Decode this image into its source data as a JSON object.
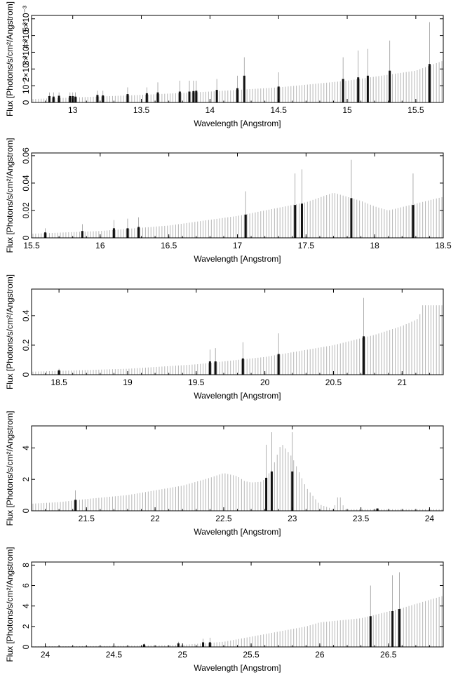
{
  "chart_data": [
    {
      "type": "bar",
      "xlabel": "Wavelength [Angstrom]",
      "ylabel": "Flux [Photons/s/cm²/Angstrom]",
      "xlim": [
        12.7,
        15.7
      ],
      "ylim": [
        0,
        0.0052
      ],
      "xticks": [
        13,
        13.5,
        14,
        14.5,
        15,
        15.5
      ],
      "yticks": [
        0,
        0.001,
        0.002,
        0.003,
        0.004,
        0.005
      ],
      "ytick_labels": [
        "0",
        "10⁻³",
        "2×10⁻³",
        "3×10⁻³",
        "4×10⁻³",
        "5×10⁻³"
      ],
      "continuum": [
        [
          12.7,
          0.0002
        ],
        [
          13.5,
          0.00045
        ],
        [
          14.0,
          0.00065
        ],
        [
          14.5,
          0.0009
        ],
        [
          15.0,
          0.0013
        ],
        [
          15.5,
          0.0019
        ],
        [
          15.7,
          0.0025
        ]
      ],
      "lines": [
        {
          "x": 12.83,
          "y": 0.00038,
          "tip": 0.0006
        },
        {
          "x": 12.86,
          "y": 0.00035,
          "tip": 0.0006
        },
        {
          "x": 12.9,
          "y": 0.0004,
          "tip": 0.0006
        },
        {
          "x": 12.98,
          "y": 0.00038,
          "tip": 0.0006
        },
        {
          "x": 13.0,
          "y": 0.00038,
          "tip": 0.0006
        },
        {
          "x": 13.02,
          "y": 0.00035,
          "tip": 0.0006
        },
        {
          "x": 13.18,
          "y": 0.00045,
          "tip": 0.0007
        },
        {
          "x": 13.22,
          "y": 0.00042,
          "tip": 0.0007
        },
        {
          "x": 13.4,
          "y": 0.0005,
          "tip": 0.0009
        },
        {
          "x": 13.54,
          "y": 0.00055,
          "tip": 0.0009
        },
        {
          "x": 13.62,
          "y": 0.0006,
          "tip": 0.0012
        },
        {
          "x": 13.78,
          "y": 0.00065,
          "tip": 0.0013
        },
        {
          "x": 13.85,
          "y": 0.00065,
          "tip": 0.0013
        },
        {
          "x": 13.88,
          "y": 0.00068,
          "tip": 0.0013
        },
        {
          "x": 13.9,
          "y": 0.0007,
          "tip": 0.0013
        },
        {
          "x": 14.05,
          "y": 0.00075,
          "tip": 0.0014
        },
        {
          "x": 14.2,
          "y": 0.00085,
          "tip": 0.0016
        },
        {
          "x": 14.25,
          "y": 0.0016,
          "tip": 0.0027
        },
        {
          "x": 14.5,
          "y": 0.00095,
          "tip": 0.0018
        },
        {
          "x": 14.97,
          "y": 0.0014,
          "tip": 0.0027
        },
        {
          "x": 15.08,
          "y": 0.0015,
          "tip": 0.0031
        },
        {
          "x": 15.15,
          "y": 0.0016,
          "tip": 0.0032
        },
        {
          "x": 15.31,
          "y": 0.0019,
          "tip": 0.0037
        },
        {
          "x": 15.6,
          "y": 0.0023,
          "tip": 0.0048
        }
      ]
    },
    {
      "type": "bar",
      "xlabel": "Wavelength [Angstrom]",
      "ylabel": "Flux [Photons/s/cm²/Angstrom]",
      "xlim": [
        15.5,
        18.5
      ],
      "ylim": [
        0,
        0.062
      ],
      "xticks": [
        15.5,
        16,
        16.5,
        17,
        17.5,
        18,
        18.5
      ],
      "yticks": [
        0,
        0.02,
        0.04,
        0.06
      ],
      "ytick_labels": [
        "0",
        "0.02",
        "0.04",
        "0.06"
      ],
      "continuum": [
        [
          15.5,
          0.003
        ],
        [
          16.0,
          0.005
        ],
        [
          16.5,
          0.009
        ],
        [
          17.0,
          0.016
        ],
        [
          17.5,
          0.026
        ],
        [
          17.7,
          0.033
        ],
        [
          17.9,
          0.027
        ],
        [
          18.0,
          0.023
        ],
        [
          18.1,
          0.02
        ],
        [
          18.5,
          0.03
        ]
      ],
      "lines": [
        {
          "x": 15.6,
          "y": 0.004,
          "tip": 0.007
        },
        {
          "x": 15.87,
          "y": 0.005,
          "tip": 0.01
        },
        {
          "x": 16.1,
          "y": 0.007,
          "tip": 0.013
        },
        {
          "x": 16.2,
          "y": 0.007,
          "tip": 0.014
        },
        {
          "x": 16.28,
          "y": 0.008,
          "tip": 0.015
        },
        {
          "x": 17.06,
          "y": 0.017,
          "tip": 0.034
        },
        {
          "x": 17.42,
          "y": 0.024,
          "tip": 0.047
        },
        {
          "x": 17.47,
          "y": 0.025,
          "tip": 0.05
        },
        {
          "x": 17.83,
          "y": 0.029,
          "tip": 0.057
        },
        {
          "x": 18.28,
          "y": 0.024,
          "tip": 0.047
        }
      ]
    },
    {
      "type": "bar",
      "xlabel": "Wavelength [Angstrom]",
      "ylabel": "Flux [Photons/s/cm²/Angstrom]",
      "xlim": [
        18.3,
        21.3
      ],
      "ylim": [
        0,
        0.58
      ],
      "xticks": [
        18.5,
        19,
        19.5,
        20,
        20.5,
        21
      ],
      "yticks": [
        0,
        0.2,
        0.4
      ],
      "ytick_labels": [
        "0",
        "0.2",
        "0.4"
      ],
      "continuum": [
        [
          18.3,
          0.02
        ],
        [
          19.0,
          0.04
        ],
        [
          19.5,
          0.07
        ],
        [
          20.0,
          0.12
        ],
        [
          20.5,
          0.2
        ],
        [
          20.8,
          0.27
        ],
        [
          21.0,
          0.33
        ],
        [
          21.12,
          0.38
        ],
        [
          21.15,
          0.47
        ],
        [
          21.3,
          0.47
        ]
      ],
      "lines": [
        {
          "x": 18.5,
          "y": 0.03,
          "tip": 0.04
        },
        {
          "x": 19.6,
          "y": 0.09,
          "tip": 0.17
        },
        {
          "x": 19.64,
          "y": 0.09,
          "tip": 0.18
        },
        {
          "x": 19.84,
          "y": 0.11,
          "tip": 0.22
        },
        {
          "x": 20.1,
          "y": 0.14,
          "tip": 0.28
        },
        {
          "x": 20.72,
          "y": 0.26,
          "tip": 0.52
        }
      ]
    },
    {
      "type": "bar",
      "xlabel": "Wavelength [Angstrom]",
      "ylabel": "Flux [Photons/s/cm²/Angstrom]",
      "xlim": [
        21.1,
        24.1
      ],
      "ylim": [
        0,
        5.4
      ],
      "xticks": [
        21.5,
        22,
        22.5,
        23,
        23.5,
        24
      ],
      "yticks": [
        0,
        2,
        4
      ],
      "ytick_labels": [
        "0",
        "2",
        "4"
      ],
      "continuum": [
        [
          21.1,
          0.45
        ],
        [
          21.3,
          0.55
        ],
        [
          21.5,
          0.75
        ],
        [
          21.8,
          1.0
        ],
        [
          22.0,
          1.3
        ],
        [
          22.2,
          1.6
        ],
        [
          22.4,
          2.1
        ],
        [
          22.5,
          2.4
        ],
        [
          22.6,
          2.2
        ],
        [
          22.65,
          1.9
        ],
        [
          22.7,
          1.8
        ],
        [
          22.78,
          1.85
        ],
        [
          22.85,
          2.6
        ],
        [
          22.92,
          4.3
        ],
        [
          23.0,
          3.4
        ],
        [
          23.1,
          1.5
        ],
        [
          23.2,
          0.4
        ],
        [
          23.3,
          0.1
        ],
        [
          23.34,
          1.1
        ],
        [
          23.38,
          0.1
        ],
        [
          23.45,
          0.1
        ],
        [
          24.1,
          0.1
        ]
      ],
      "lines": [
        {
          "x": 21.42,
          "y": 0.7,
          "tip": 1.3
        },
        {
          "x": 22.81,
          "y": 2.1,
          "tip": 4.2
        },
        {
          "x": 22.85,
          "y": 2.5,
          "tip": 5.0
        },
        {
          "x": 23.0,
          "y": 2.5,
          "tip": 5.0
        },
        {
          "x": 23.62,
          "y": 0.15,
          "tip": 0.15
        }
      ]
    },
    {
      "type": "bar",
      "xlabel": "Wavelength [Angstrom]",
      "ylabel": "Flux [Photons/s/cm²/Angstrom]",
      "xlim": [
        23.9,
        26.9
      ],
      "ylim": [
        0,
        8.3
      ],
      "xticks": [
        24,
        24.5,
        25,
        25.5,
        26,
        26.5
      ],
      "yticks": [
        0,
        2,
        4,
        6,
        8
      ],
      "ytick_labels": [
        "0",
        "2",
        "4",
        "6",
        "8"
      ],
      "continuum": [
        [
          23.9,
          0.05
        ],
        [
          24.5,
          0.1
        ],
        [
          25.0,
          0.2
        ],
        [
          25.3,
          0.5
        ],
        [
          25.5,
          1.0
        ],
        [
          25.7,
          1.5
        ],
        [
          25.9,
          2.0
        ],
        [
          26.0,
          2.4
        ],
        [
          26.3,
          2.8
        ],
        [
          26.6,
          3.8
        ],
        [
          26.9,
          5.0
        ]
      ],
      "lines": [
        {
          "x": 24.72,
          "y": 0.25,
          "tip": 0.35
        },
        {
          "x": 24.97,
          "y": 0.35,
          "tip": 0.5
        },
        {
          "x": 25.15,
          "y": 0.45,
          "tip": 0.8
        },
        {
          "x": 25.2,
          "y": 0.45,
          "tip": 0.9
        },
        {
          "x": 26.37,
          "y": 3.0,
          "tip": 6.0
        },
        {
          "x": 26.53,
          "y": 3.5,
          "tip": 7.0
        },
        {
          "x": 26.58,
          "y": 3.7,
          "tip": 7.3
        }
      ]
    }
  ]
}
